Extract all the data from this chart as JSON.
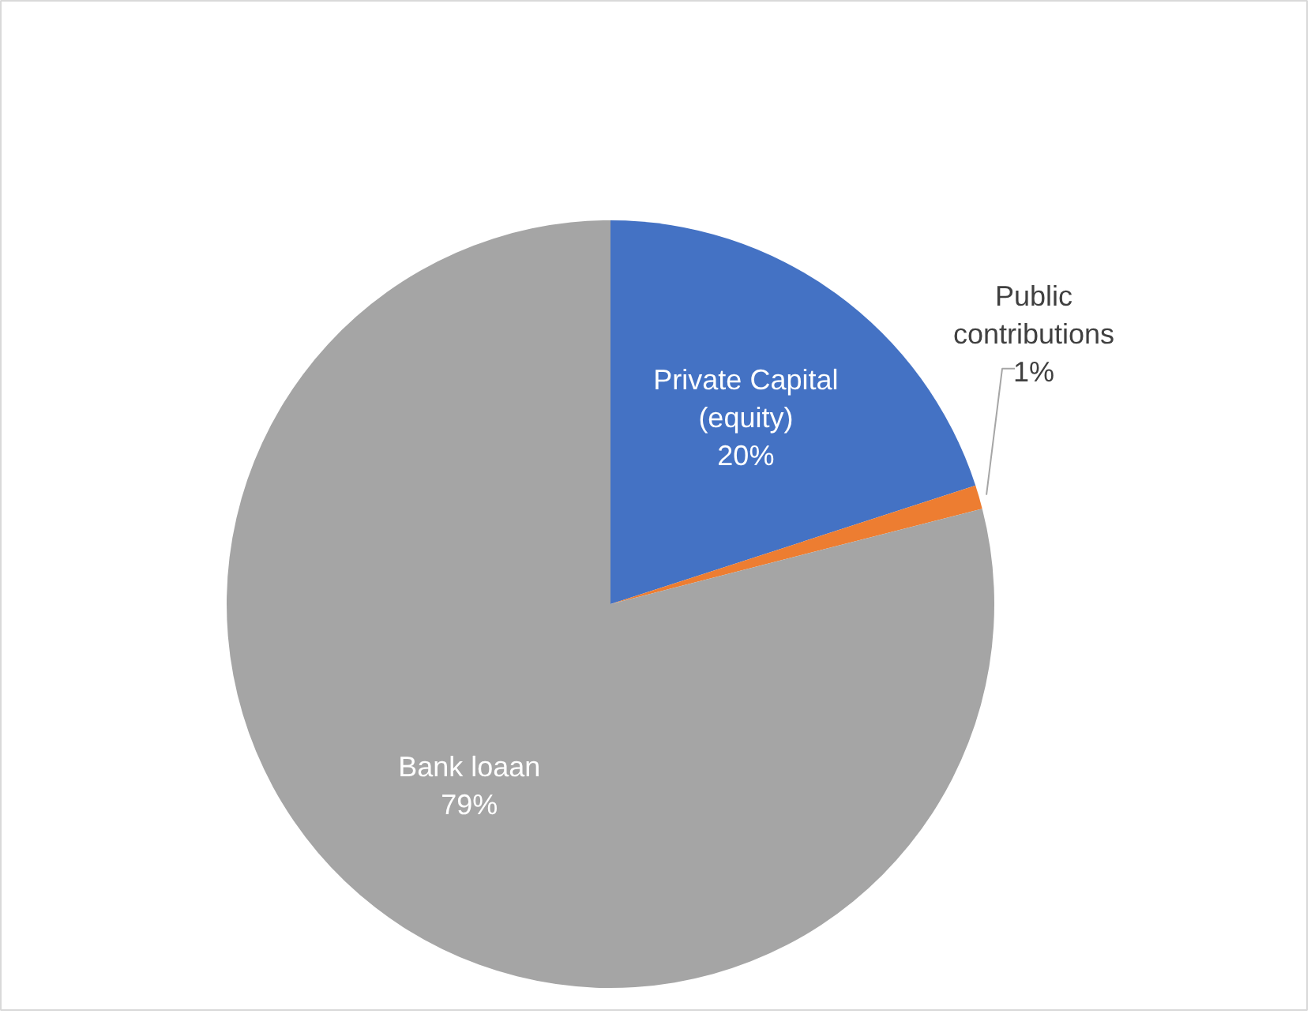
{
  "chart_data": {
    "type": "pie",
    "categories": [
      "Private Capital\n(equity)",
      "Public\ncontributions",
      "Bank loaan"
    ],
    "values": [
      20,
      1,
      79
    ],
    "colors": [
      "#4472c4",
      "#ed7d31",
      "#a5a5a5"
    ],
    "value_labels": [
      "20%",
      "1%",
      "79%"
    ]
  }
}
